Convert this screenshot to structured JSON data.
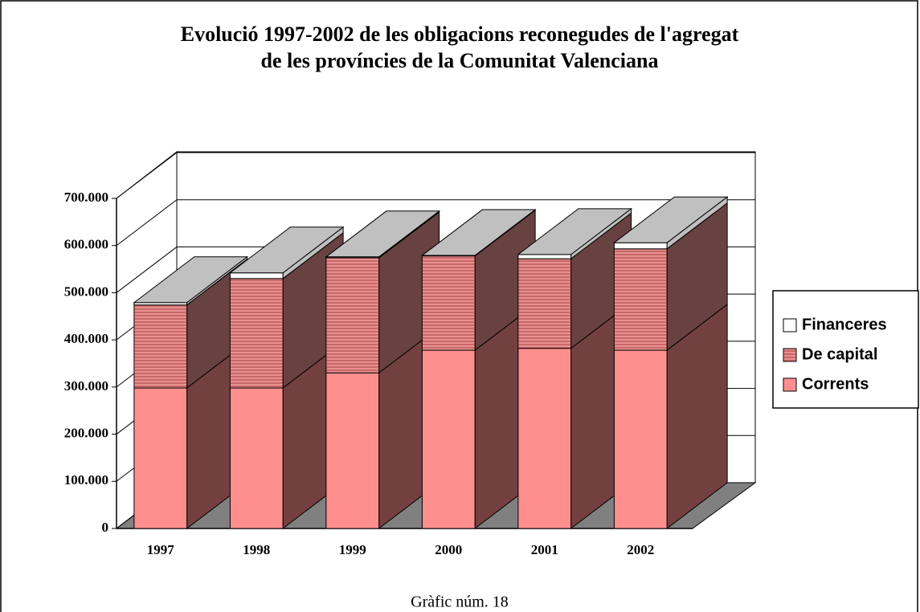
{
  "chart_data": {
    "type": "bar3d_stacked",
    "title": [
      "Evolució 1997-2002 de les obligacions reconegudes de l'agregat",
      "de les províncies de la Comunitat Valenciana"
    ],
    "caption": "Gràfic núm. 18",
    "categories": [
      "1997",
      "1998",
      "1999",
      "2000",
      "2001",
      "2002"
    ],
    "series": [
      {
        "name": "Corrents",
        "color": "#ff8f8f",
        "values": [
          298000,
          298000,
          330000,
          378000,
          382000,
          378000
        ]
      },
      {
        "name": "De capital",
        "color": "#e89090",
        "values": [
          176000,
          232000,
          244000,
          200000,
          190000,
          215000
        ]
      },
      {
        "name": "Financeres",
        "color": "#ffffff",
        "values": [
          5000,
          12000,
          2000,
          1000,
          9000,
          13000
        ]
      }
    ],
    "ylim": [
      0,
      700000
    ],
    "yticks": [
      0,
      {
        "value": 100000,
        "label": "100.000"
      },
      {
        "value": 200000,
        "label": "200.000"
      },
      {
        "value": 300000,
        "label": "300.000"
      },
      {
        "value": 400000,
        "label": "400.000"
      },
      {
        "value": 500000,
        "label": "500.000"
      },
      {
        "value": 600000,
        "label": "600.000"
      },
      {
        "value": 700000,
        "label": "700.000"
      }
    ],
    "grid": true
  }
}
